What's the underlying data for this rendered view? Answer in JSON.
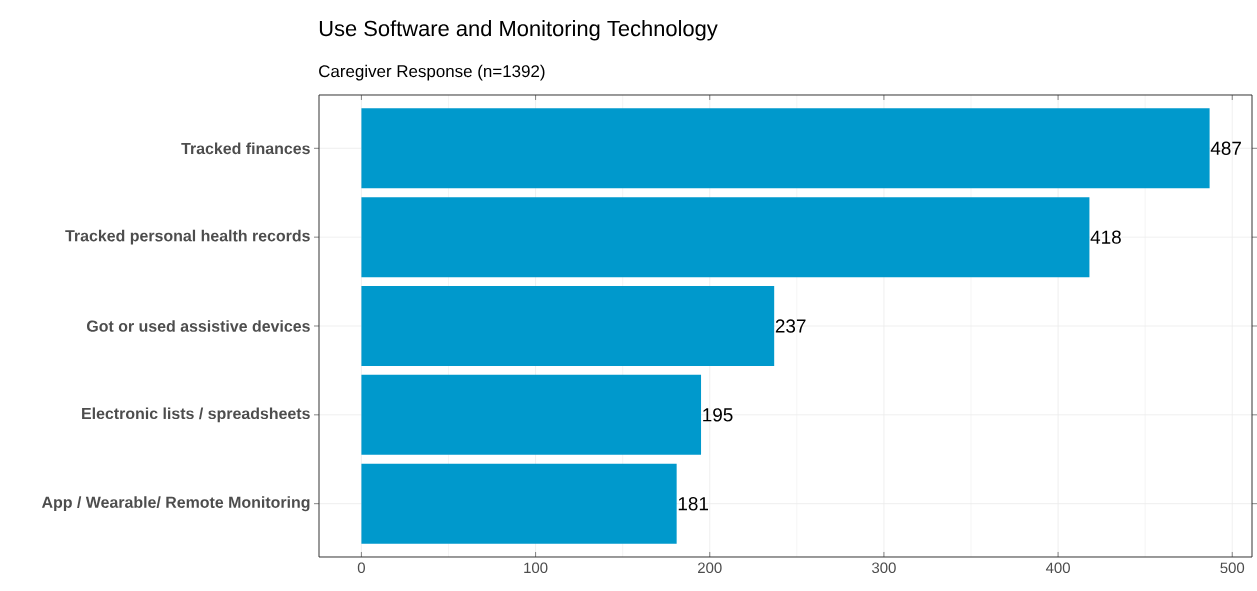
{
  "chart_data": {
    "type": "bar",
    "orientation": "horizontal",
    "title": "Use Software and Monitoring Technology",
    "subtitle": "Caregiver Response (n=1392)",
    "categories": [
      "Tracked finances",
      "Tracked personal health records",
      "Got or used assistive devices",
      "Electronic lists / spreadsheets",
      "App / Wearable/ Remote Monitoring"
    ],
    "values": [
      487,
      418,
      237,
      195,
      181
    ],
    "color": "#0099cc",
    "data_labels": true,
    "grid": true,
    "xlim": [
      -24.35,
      511.35
    ],
    "xticks": [
      0,
      100,
      200,
      300,
      400,
      500
    ]
  }
}
